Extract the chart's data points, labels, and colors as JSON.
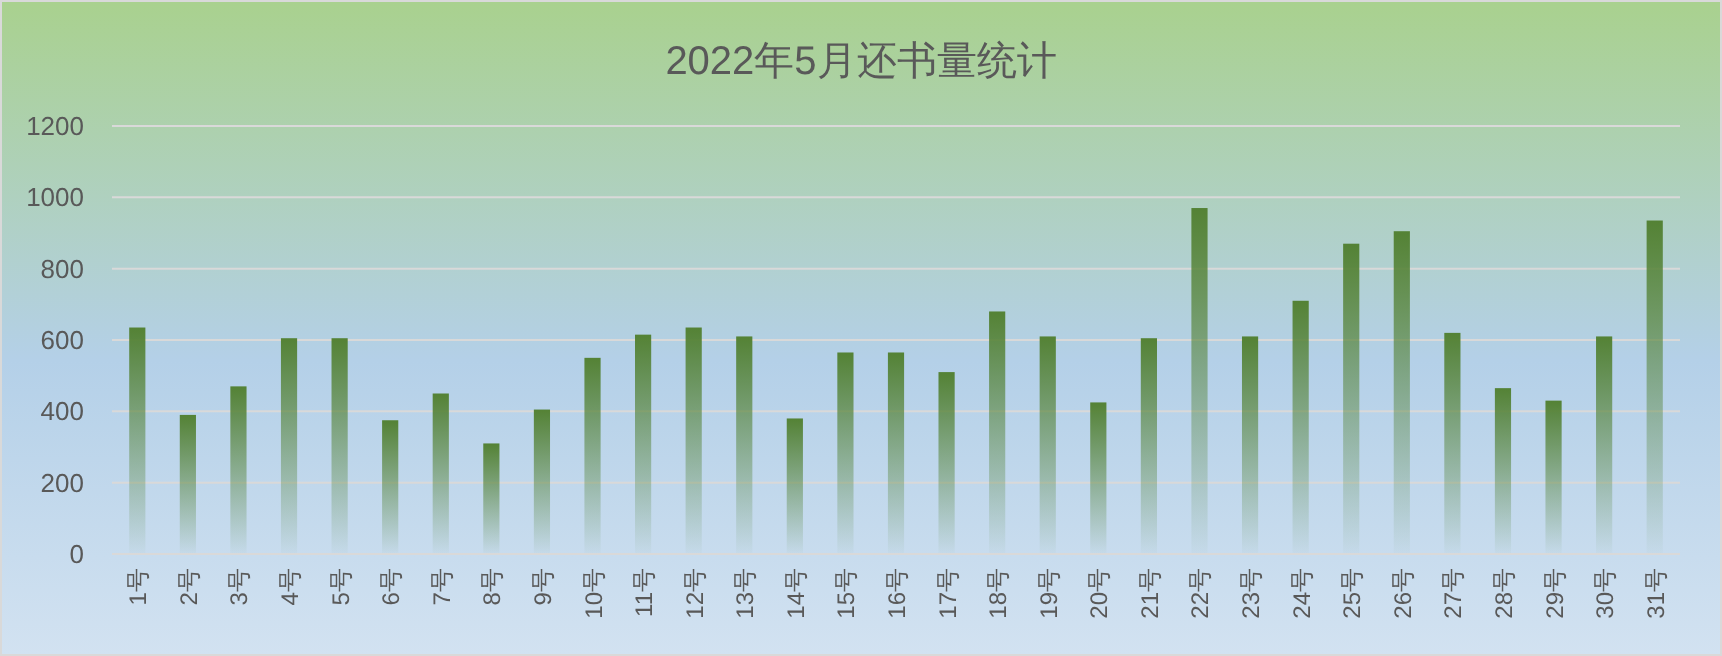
{
  "chart_data": {
    "type": "bar",
    "title": "2022年5月还书量统计",
    "categories": [
      "1号",
      "2号",
      "3号",
      "4号",
      "5号",
      "6号",
      "7号",
      "8号",
      "9号",
      "10号",
      "11号",
      "12号",
      "13号",
      "14号",
      "15号",
      "16号",
      "17号",
      "18号",
      "19号",
      "20号",
      "21号",
      "22号",
      "23号",
      "24号",
      "25号",
      "26号",
      "27号",
      "28号",
      "29号",
      "30号",
      "31号"
    ],
    "values": [
      635,
      390,
      470,
      605,
      605,
      375,
      450,
      310,
      405,
      550,
      615,
      635,
      610,
      380,
      565,
      565,
      510,
      680,
      610,
      425,
      605,
      970,
      610,
      710,
      870,
      905,
      620,
      465,
      430,
      610,
      935
    ],
    "color": "#548235",
    "ylim": [
      0,
      1200
    ],
    "yticks": [
      0,
      200,
      400,
      600,
      800,
      1000,
      1200
    ],
    "grid": "y"
  }
}
